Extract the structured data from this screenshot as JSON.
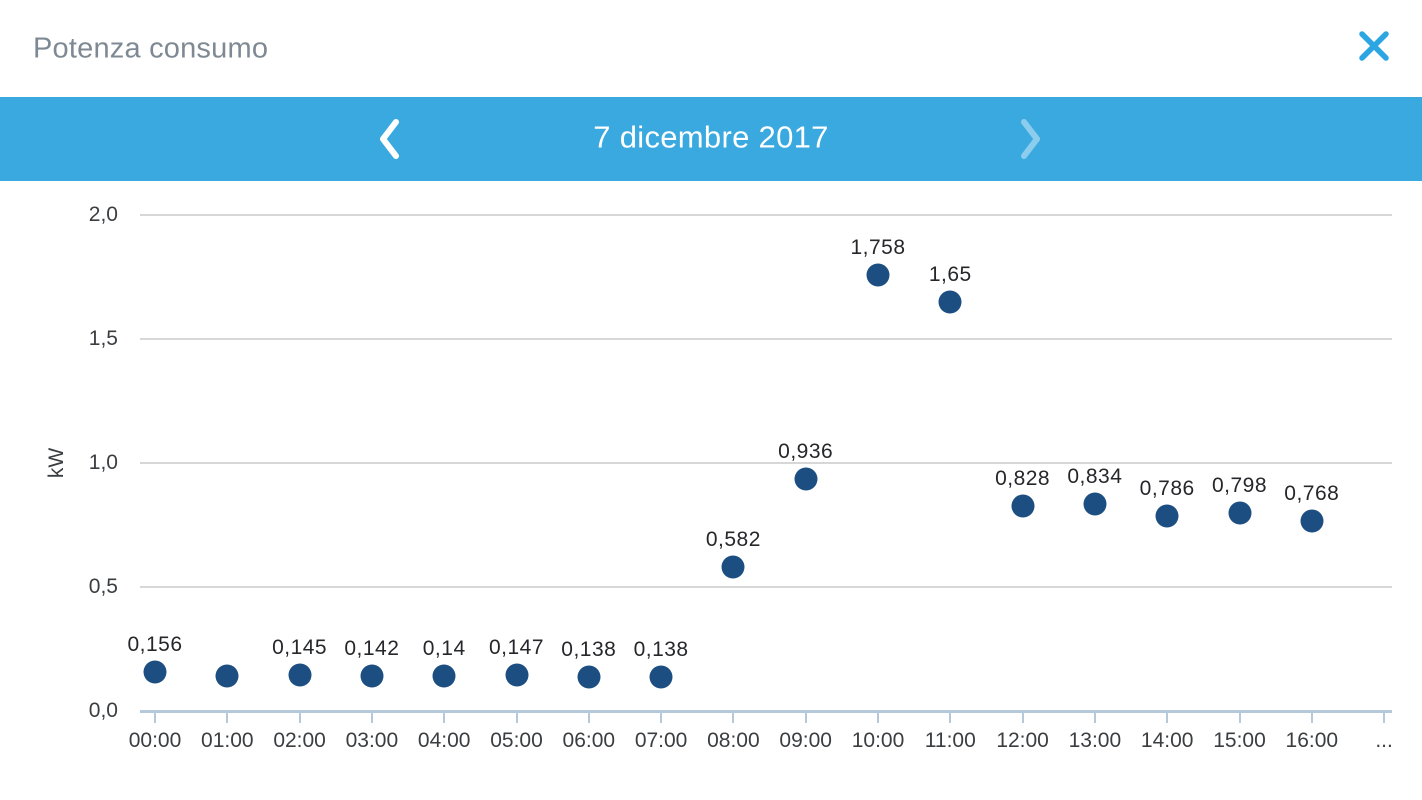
{
  "header": {
    "title": "Potenza consumo",
    "close_icon": "close-icon"
  },
  "date_nav": {
    "date": "7 dicembre 2017",
    "prev_icon": "chevron-left-icon",
    "next_icon": "chevron-right-icon",
    "next_disabled": true
  },
  "chart_data": {
    "type": "scatter",
    "title": "",
    "xlabel": "",
    "ylabel": "kW",
    "ylim": [
      0,
      2
    ],
    "grid": true,
    "legend": false,
    "yticks": [
      "2,0",
      "1,5",
      "1,0",
      "0,5",
      "0,0"
    ],
    "categories": [
      "00:00",
      "01:00",
      "02:00",
      "03:00",
      "04:00",
      "05:00",
      "06:00",
      "07:00",
      "08:00",
      "09:00",
      "10:00",
      "11:00",
      "12:00",
      "13:00",
      "14:00",
      "15:00",
      "16:00"
    ],
    "x_overflow_label": "...",
    "values": [
      0.156,
      0.14,
      0.145,
      0.142,
      0.14,
      0.147,
      0.138,
      0.138,
      0.582,
      0.936,
      1.758,
      1.65,
      0.828,
      0.834,
      0.786,
      0.798,
      0.768
    ],
    "point_labels": [
      "0,156",
      "",
      "0,145",
      "0,142",
      "0,14",
      "0,147",
      "0,138",
      "0,138",
      "0,582",
      "0,936",
      "1,758",
      "1,65",
      "0,828",
      "0,834",
      "0,786",
      "0,798",
      "0,768"
    ]
  },
  "colors": {
    "accent": "#39a9e0",
    "close_icon": "#2ba6e3",
    "title_text": "#7e8993",
    "date_text": "#ffffff",
    "point": "#1d4e82",
    "grid_line": "#d7d7d7",
    "axis_line": "#b6c9da",
    "tick_label": "#3b3e41",
    "point_label": "#26272a"
  }
}
